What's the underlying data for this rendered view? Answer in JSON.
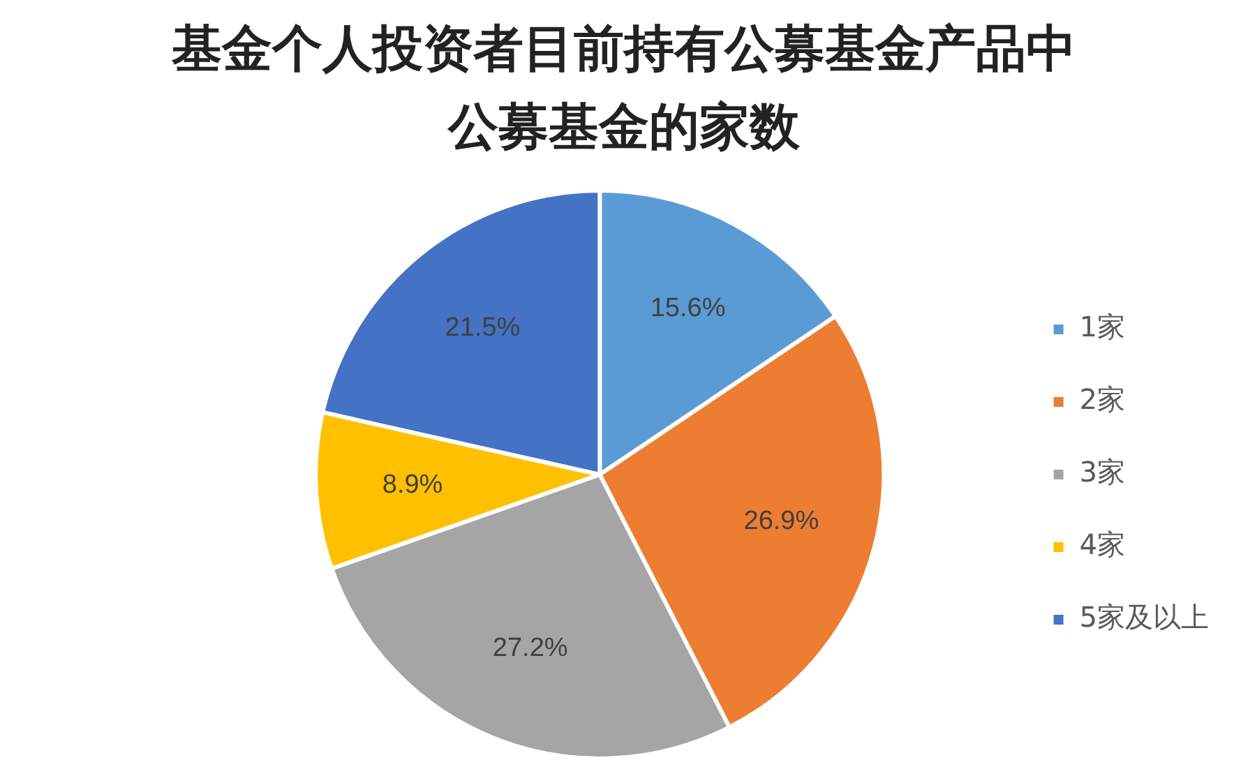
{
  "chart_data": {
    "type": "pie",
    "title": "基金个人投资者目前持有公募基金产品中公募基金的家数",
    "categories": [
      "1家",
      "2家",
      "3家",
      "4家",
      "5家及以上"
    ],
    "values": [
      15.6,
      26.9,
      27.2,
      8.9,
      21.5
    ],
    "value_labels": [
      "15.6%",
      "26.9%",
      "27.2%",
      "8.9%",
      "21.5%"
    ],
    "colors": [
      "#5b9bd5",
      "#ed7d31",
      "#a5a5a5",
      "#ffc000",
      "#4472c4"
    ],
    "legend": "right"
  }
}
